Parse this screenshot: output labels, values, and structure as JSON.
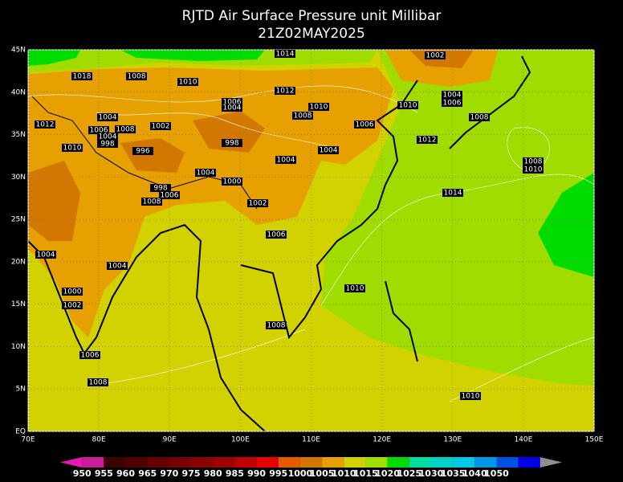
{
  "header": {
    "title": "RJTD Air Surface Pressure unit Millibar",
    "subtitle": "21Z02MAY2025"
  },
  "map": {
    "lat_ticks": [
      {
        "value": 45,
        "label": "45N"
      },
      {
        "value": 40,
        "label": "40N"
      },
      {
        "value": 35,
        "label": "35N"
      },
      {
        "value": 30,
        "label": "30N"
      },
      {
        "value": 25,
        "label": "25N"
      },
      {
        "value": 20,
        "label": "20N"
      },
      {
        "value": 15,
        "label": "15N"
      },
      {
        "value": 10,
        "label": "10N"
      },
      {
        "value": 5,
        "label": "5N"
      },
      {
        "value": 0,
        "label": "EQ"
      }
    ],
    "lon_ticks": [
      {
        "value": 70,
        "label": "70E"
      },
      {
        "value": 80,
        "label": "80E"
      },
      {
        "value": 90,
        "label": "90E"
      },
      {
        "value": 100,
        "label": "100E"
      },
      {
        "value": 110,
        "label": "110E"
      },
      {
        "value": 120,
        "label": "120E"
      },
      {
        "value": 130,
        "label": "130E"
      },
      {
        "value": 140,
        "label": "140E"
      },
      {
        "value": 150,
        "label": "150E"
      }
    ],
    "lonlim": [
      70,
      150
    ],
    "latlim": [
      0,
      45
    ],
    "contour_labels": [
      1014,
      1002,
      1018,
      1008,
      1010,
      1012,
      1004,
      1006,
      1004,
      1006,
      1010,
      1010,
      1008,
      1004,
      1008,
      1012,
      1006,
      1002,
      1006,
      1008,
      1004,
      998,
      1012,
      1010,
      998,
      996,
      1004,
      1004,
      1008,
      1010,
      1004,
      1000,
      998,
      1014,
      1006,
      1008,
      1002,
      1006,
      1004,
      1004,
      1010,
      1000,
      1002,
      1008,
      1006,
      1008,
      1010
    ]
  },
  "colorbar": {
    "levels": [
      950,
      955,
      960,
      965,
      970,
      975,
      980,
      985,
      990,
      995,
      1000,
      1005,
      1010,
      1015,
      1020,
      1025,
      1030,
      1035,
      1040,
      1050
    ],
    "colors": [
      "#e619b4",
      "#c81e96",
      "#3c0000",
      "#500000",
      "#640000",
      "#780000",
      "#8c0000",
      "#a00000",
      "#c00000",
      "#e60000",
      "#e65a00",
      "#d27800",
      "#e6a000",
      "#d2d200",
      "#a0dc00",
      "#00dc00",
      "#00dca0",
      "#00d2c8",
      "#00c8e6",
      "#0096e6",
      "#0050e6",
      "#0000e6",
      "#909090"
    ]
  }
}
